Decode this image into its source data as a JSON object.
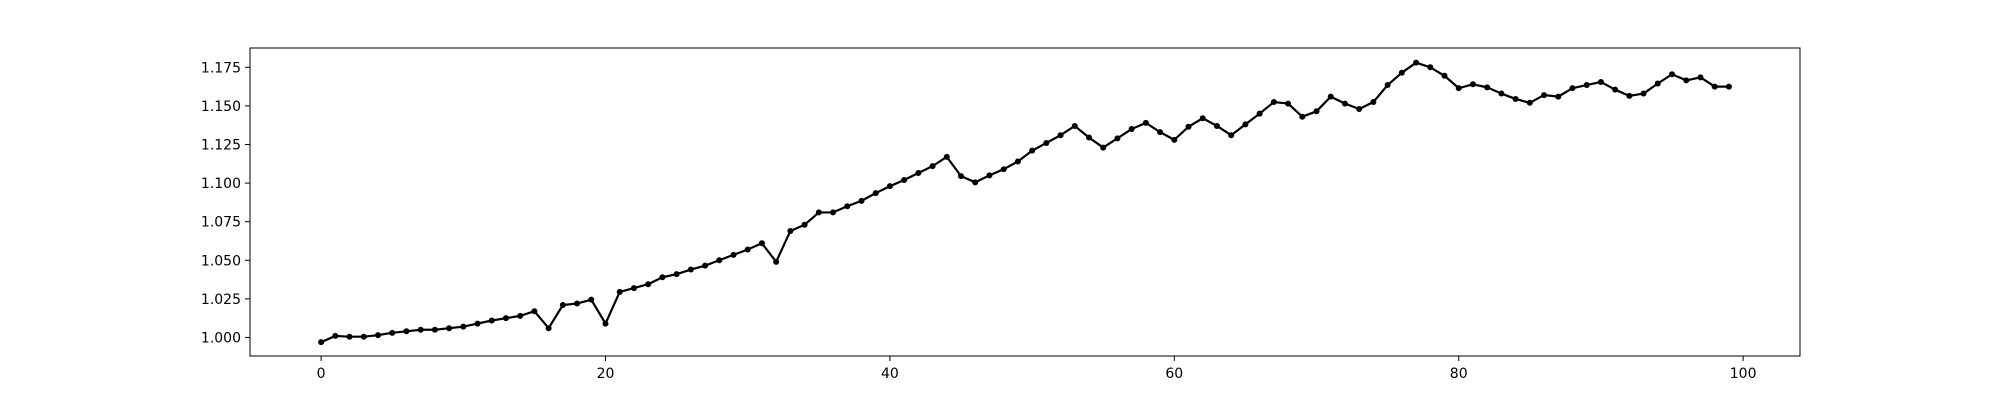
{
  "chart_data": {
    "type": "line",
    "title": "",
    "xlabel": "",
    "ylabel": "",
    "xlim": [
      -5,
      104
    ],
    "ylim": [
      0.988,
      1.1875
    ],
    "xticks": [
      0,
      20,
      40,
      60,
      80,
      100
    ],
    "xtick_labels": [
      "0",
      "20",
      "40",
      "60",
      "80",
      "100"
    ],
    "yticks": [
      1.0,
      1.025,
      1.05,
      1.075,
      1.1,
      1.125,
      1.15,
      1.175
    ],
    "ytick_labels": [
      "1.000",
      "1.025",
      "1.050",
      "1.075",
      "1.100",
      "1.125",
      "1.150",
      "1.175"
    ],
    "grid": false,
    "legend": false,
    "line_color": "#000000",
    "marker": "circle",
    "series": [
      {
        "x": [
          0,
          1,
          2,
          3,
          4,
          5,
          6,
          7,
          8,
          9,
          10,
          11,
          12,
          13,
          14,
          15,
          16,
          17,
          18,
          19,
          20,
          21,
          22,
          23,
          24,
          25,
          26,
          27,
          28,
          29,
          30,
          31,
          32,
          33,
          34,
          35,
          36,
          37,
          38,
          39,
          40,
          41,
          42,
          43,
          44,
          45,
          46,
          47,
          48,
          49,
          50,
          51,
          52,
          53,
          54,
          55,
          56,
          57,
          58,
          59,
          60,
          61,
          62,
          63,
          64,
          65,
          66,
          67,
          68,
          69,
          70,
          71,
          72,
          73,
          74,
          75,
          76,
          77,
          78,
          79,
          80,
          81,
          82,
          83,
          84,
          85,
          86,
          87,
          88,
          89,
          90,
          91,
          92,
          93,
          94,
          95,
          96,
          97,
          98,
          99
        ],
        "y": [
          0.997,
          1.001,
          1.0005,
          1.0005,
          1.0015,
          1.003,
          1.004,
          1.005,
          1.005,
          1.006,
          1.007,
          1.009,
          1.011,
          1.0125,
          1.014,
          1.017,
          1.006,
          1.021,
          1.022,
          1.0245,
          1.009,
          1.0295,
          1.032,
          1.0345,
          1.039,
          1.041,
          1.044,
          1.0465,
          1.05,
          1.0535,
          1.057,
          1.061,
          1.049,
          1.069,
          1.073,
          1.081,
          1.081,
          1.085,
          1.0885,
          1.0935,
          1.098,
          1.102,
          1.1065,
          1.111,
          1.117,
          1.1045,
          1.1005,
          1.105,
          1.109,
          1.114,
          1.121,
          1.126,
          1.131,
          1.137,
          1.1295,
          1.123,
          1.129,
          1.135,
          1.139,
          1.133,
          1.128,
          1.1365,
          1.142,
          1.137,
          1.131,
          1.138,
          1.145,
          1.1525,
          1.1515,
          1.143,
          1.1465,
          1.156,
          1.1515,
          1.148,
          1.1525,
          1.1635,
          1.1715,
          1.178,
          1.175,
          1.1695,
          1.1615,
          1.164,
          1.162,
          1.158,
          1.1545,
          1.152,
          1.157,
          1.156,
          1.1615,
          1.1635,
          1.1655,
          1.1605,
          1.1565,
          1.158,
          1.1645,
          1.1705,
          1.1665,
          1.1685,
          1.1625,
          1.1625
        ]
      }
    ]
  }
}
